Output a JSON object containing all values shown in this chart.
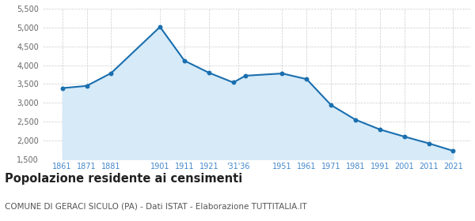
{
  "years": [
    1861,
    1871,
    1881,
    1901,
    1911,
    1921,
    1931,
    1936,
    1951,
    1961,
    1971,
    1981,
    1991,
    2001,
    2011,
    2021
  ],
  "values": [
    3390,
    3450,
    3790,
    5020,
    4120,
    3800,
    3540,
    3720,
    3780,
    3630,
    2940,
    2550,
    2290,
    2100,
    1920,
    1720
  ],
  "ylim": [
    1500,
    5500
  ],
  "yticks": [
    1500,
    2000,
    2500,
    3000,
    3500,
    4000,
    4500,
    5000,
    5500
  ],
  "line_color": "#1a6faf",
  "fill_color": "#d6eaf8",
  "marker_color": "#1a6faf",
  "bg_color": "#ffffff",
  "grid_color": "#cccccc",
  "title": "Popolazione residente ai censimenti",
  "subtitle": "COMUNE DI GERACI SICULO (PA) - Dati ISTAT - Elaborazione TUTTITALIA.IT",
  "title_fontsize": 10.5,
  "subtitle_fontsize": 7.5,
  "tick_label_color": "#4488cc",
  "ytick_label_color": "#666666",
  "xtick_positions": [
    1861,
    1871,
    1881,
    1901,
    1911,
    1921,
    1933,
    1951,
    1961,
    1971,
    1981,
    1991,
    2001,
    2011,
    2021
  ],
  "xtick_labels": [
    "1861",
    "1871",
    "1881",
    "1901",
    "1911",
    "1921",
    "'31'36",
    "1951",
    "1961",
    "1971",
    "1981",
    "1991",
    "2001",
    "2011",
    "2021"
  ],
  "xlim": [
    1853,
    2028
  ]
}
